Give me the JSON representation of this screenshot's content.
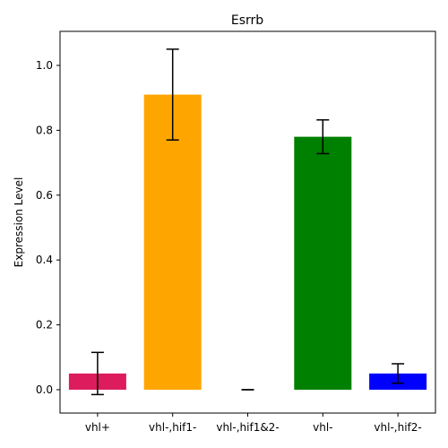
{
  "chart_data": {
    "type": "bar",
    "title": "Esrrb",
    "xlabel": "",
    "ylabel": "Expression Level",
    "ylim": [
      -0.072,
      1.105
    ],
    "yticks": [
      0.0,
      0.2,
      0.4,
      0.6,
      0.8,
      1.0
    ],
    "ytick_labels": [
      "0.0",
      "0.2",
      "0.4",
      "0.6",
      "0.8",
      "1.0"
    ],
    "categories": [
      "vhl+",
      "vhl-,hif1-",
      "vhl-,hif1&2-",
      "vhl-",
      "vhl-,hif2-"
    ],
    "values": [
      0.05,
      0.91,
      0.0,
      0.78,
      0.05
    ],
    "errors": [
      0.065,
      0.14,
      0.0,
      0.052,
      0.03
    ],
    "colors": [
      "#dc1c5c",
      "#ffa500",
      "#808080",
      "#008000",
      "#0000ff"
    ],
    "grid": false,
    "legend": "none"
  }
}
